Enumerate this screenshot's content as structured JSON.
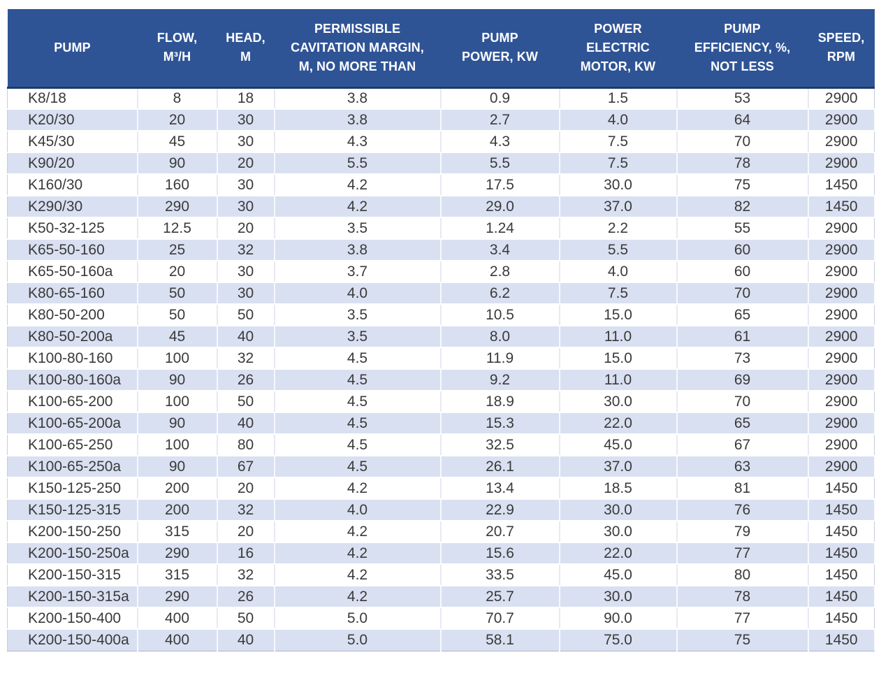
{
  "colors": {
    "header_bg": "#2F5496",
    "header_text": "#ffffff",
    "band_row_bg": "#D9E0F1",
    "body_text": "#3a3a3a"
  },
  "table": {
    "columns": [
      {
        "key": "pump",
        "label": "PUMP"
      },
      {
        "key": "flow",
        "label": "FLOW,\nM³/H"
      },
      {
        "key": "head",
        "label": "HEAD,\nM"
      },
      {
        "key": "cavitation",
        "label": "PERMISSIBLE\nCAVITATION MARGIN,\nM, NO MORE THAN"
      },
      {
        "key": "pump_power",
        "label": "PUMP\nPOWER, KW"
      },
      {
        "key": "motor_power",
        "label": "POWER\nELECTRIC\nMOTOR, KW"
      },
      {
        "key": "efficiency",
        "label": "PUMP\nEFFICIENCY, %,\nNOT LESS"
      },
      {
        "key": "speed",
        "label": "SPEED,\nRPM"
      }
    ],
    "rows": [
      [
        "K8/18",
        "8",
        "18",
        "3.8",
        "0.9",
        "1.5",
        "53",
        "2900"
      ],
      [
        "K20/30",
        "20",
        "30",
        "3.8",
        "2.7",
        "4.0",
        "64",
        "2900"
      ],
      [
        "K45/30",
        "45",
        "30",
        "4.3",
        "4.3",
        "7.5",
        "70",
        "2900"
      ],
      [
        "K90/20",
        "90",
        "20",
        "5.5",
        "5.5",
        "7.5",
        "78",
        "2900"
      ],
      [
        "K160/30",
        "160",
        "30",
        "4.2",
        "17.5",
        "30.0",
        "75",
        "1450"
      ],
      [
        "K290/30",
        "290",
        "30",
        "4.2",
        "29.0",
        "37.0",
        "82",
        "1450"
      ],
      [
        "K50-32-125",
        "12.5",
        "20",
        "3.5",
        "1.24",
        "2.2",
        "55",
        "2900"
      ],
      [
        "K65-50-160",
        "25",
        "32",
        "3.8",
        "3.4",
        "5.5",
        "60",
        "2900"
      ],
      [
        "K65-50-160a",
        "20",
        "30",
        "3.7",
        "2.8",
        "4.0",
        "60",
        "2900"
      ],
      [
        "K80-65-160",
        "50",
        "30",
        "4.0",
        "6.2",
        "7.5",
        "70",
        "2900"
      ],
      [
        "K80-50-200",
        "50",
        "50",
        "3.5",
        "10.5",
        "15.0",
        "65",
        "2900"
      ],
      [
        "K80-50-200a",
        "45",
        "40",
        "3.5",
        "8.0",
        "11.0",
        "61",
        "2900"
      ],
      [
        "K100-80-160",
        "100",
        "32",
        "4.5",
        "11.9",
        "15.0",
        "73",
        "2900"
      ],
      [
        "K100-80-160a",
        "90",
        "26",
        "4.5",
        "9.2",
        "11.0",
        "69",
        "2900"
      ],
      [
        "K100-65-200",
        "100",
        "50",
        "4.5",
        "18.9",
        "30.0",
        "70",
        "2900"
      ],
      [
        "K100-65-200a",
        "90",
        "40",
        "4.5",
        "15.3",
        "22.0",
        "65",
        "2900"
      ],
      [
        "K100-65-250",
        "100",
        "80",
        "4.5",
        "32.5",
        "45.0",
        "67",
        "2900"
      ],
      [
        "K100-65-250a",
        "90",
        "67",
        "4.5",
        "26.1",
        "37.0",
        "63",
        "2900"
      ],
      [
        "K150-125-250",
        "200",
        "20",
        "4.2",
        "13.4",
        "18.5",
        "81",
        "1450"
      ],
      [
        "K150-125-315",
        "200",
        "32",
        "4.0",
        "22.9",
        "30.0",
        "76",
        "1450"
      ],
      [
        "K200-150-250",
        "315",
        "20",
        "4.2",
        "20.7",
        "30.0",
        "79",
        "1450"
      ],
      [
        "K200-150-250a",
        "290",
        "16",
        "4.2",
        "15.6",
        "22.0",
        "77",
        "1450"
      ],
      [
        "K200-150-315",
        "315",
        "32",
        "4.2",
        "33.5",
        "45.0",
        "80",
        "1450"
      ],
      [
        "K200-150-315a",
        "290",
        "26",
        "4.2",
        "25.7",
        "30.0",
        "78",
        "1450"
      ],
      [
        "K200-150-400",
        "400",
        "50",
        "5.0",
        "70.7",
        "90.0",
        "77",
        "1450"
      ],
      [
        "K200-150-400a",
        "400",
        "40",
        "5.0",
        "58.1",
        "75.0",
        "75",
        "1450"
      ]
    ]
  }
}
